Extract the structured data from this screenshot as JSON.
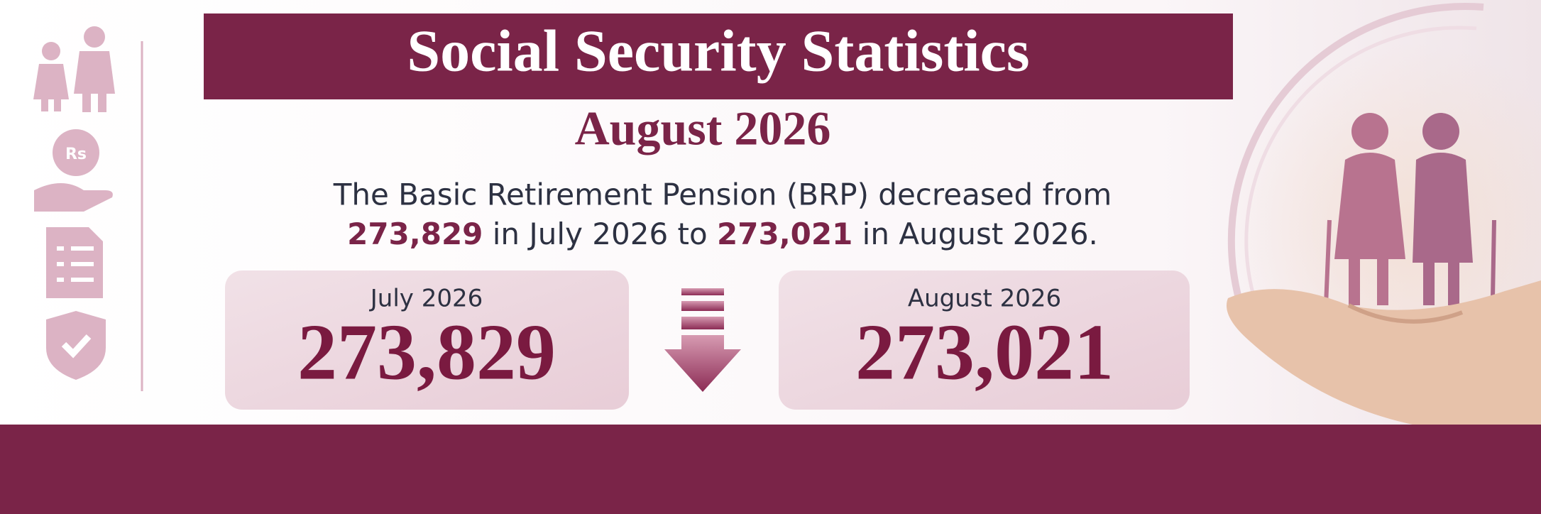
{
  "header": {
    "title": "Social Security Statistics",
    "subtitle": "August 2026"
  },
  "description": {
    "line1": "The Basic Retirement Pension (BRP) decreased from",
    "from_value": "273,829",
    "middle": " in July 2026 to ",
    "to_value": "273,021",
    "end": " in August 2026."
  },
  "cards": [
    {
      "label": "July 2026",
      "value": "273,829"
    },
    {
      "label": "August 2026",
      "value": "273,021"
    }
  ],
  "icons": {
    "rupee_label": "Rs"
  }
}
